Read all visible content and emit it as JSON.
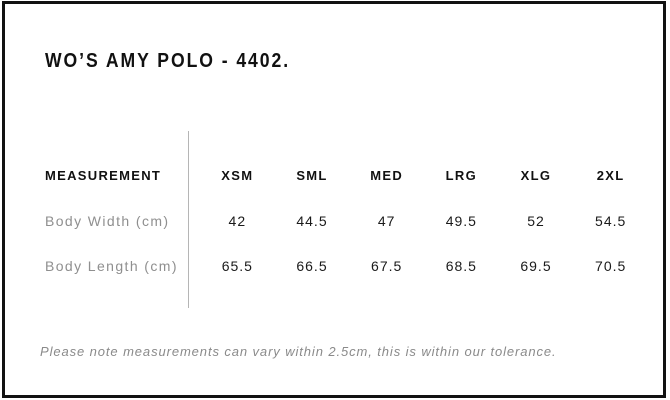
{
  "title": "WO’S AMY POLO - 4402.",
  "note": "Please note measurements can vary within 2.5cm, this is within our tolerance.",
  "chart_data": {
    "type": "table",
    "title": "WO’S AMY POLO - 4402.",
    "columns": [
      "MEASUREMENT",
      "XSM",
      "SML",
      "MED",
      "LRG",
      "XLG",
      "2XL"
    ],
    "rows": [
      {
        "label": "Body Width (cm)",
        "values": [
          "42",
          "44.5",
          "47",
          "49.5",
          "52",
          "54.5"
        ]
      },
      {
        "label": "Body Length (cm)",
        "values": [
          "65.5",
          "66.5",
          "67.5",
          "68.5",
          "69.5",
          "70.5"
        ]
      }
    ],
    "footnote": "Please note measurements can vary within 2.5cm, this is within our tolerance.",
    "layout": {
      "header_divider": "vertical line between label column and size columns",
      "grid": "off"
    }
  },
  "colors": {
    "text": "#111111",
    "muted_label": "#8f8f8f",
    "note_text": "#8a8a8a",
    "divider": "#b5b5b5",
    "border": "#121212",
    "background": "#ffffff"
  }
}
